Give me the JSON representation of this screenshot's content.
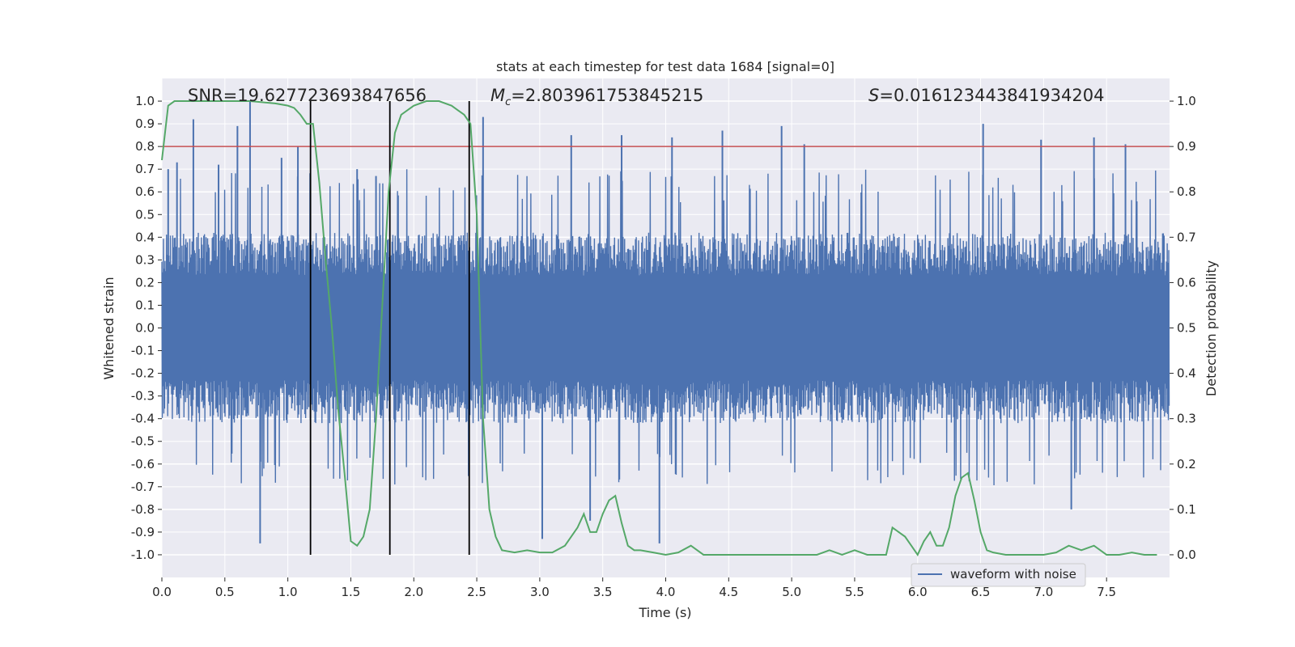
{
  "chart_data": {
    "type": "line",
    "title": "stats at each timestep for test data 1684 [signal=0]",
    "xlabel": "Time (s)",
    "ylabel": "Whitened strain",
    "y2label": "Detection probability",
    "xlim": [
      0.0,
      8.0
    ],
    "ylim": [
      -1.1,
      1.1
    ],
    "y2lim": [
      -0.05,
      1.05
    ],
    "xticks": [
      "0.0",
      "0.5",
      "1.0",
      "1.5",
      "2.0",
      "2.5",
      "3.0",
      "3.5",
      "4.0",
      "4.5",
      "5.0",
      "5.5",
      "6.0",
      "6.5",
      "7.0",
      "7.5"
    ],
    "yticks": [
      "1.0",
      "0.9",
      "0.8",
      "0.7",
      "0.6",
      "0.5",
      "0.4",
      "0.3",
      "0.2",
      "0.1",
      "0.0",
      "-0.1",
      "-0.2",
      "-0.3",
      "-0.4",
      "-0.5",
      "-0.6",
      "-0.7",
      "-0.8",
      "-0.9",
      "-1.0"
    ],
    "y2ticks": [
      "1.0",
      "0.9",
      "0.8",
      "0.7",
      "0.6",
      "0.5",
      "0.4",
      "0.3",
      "0.2",
      "0.1",
      "0.0"
    ],
    "grid": true,
    "legend_position": "lower-right",
    "annotations": {
      "snr": "SNR=19.627723693847656",
      "mc_symbol": "M",
      "mc_sub": "c",
      "mc_value": "=2.803961753845215",
      "s_symbol": "S",
      "s_value": "=0.016123443841934204"
    },
    "threshold_line": {
      "y2": 0.9,
      "color": "#c44e52"
    },
    "vertical_lines": [
      1.18,
      1.81,
      2.44
    ],
    "series": [
      {
        "name": "waveform with noise",
        "color": "#4c72b0",
        "kind": "noise",
        "envelope_typical": 0.42,
        "spikes": [
          [
            0.05,
            0.7
          ],
          [
            0.12,
            0.73
          ],
          [
            0.25,
            0.92
          ],
          [
            0.45,
            0.72
          ],
          [
            0.6,
            0.89
          ],
          [
            0.7,
            1.0
          ],
          [
            0.78,
            -0.95
          ],
          [
            0.95,
            0.75
          ],
          [
            1.08,
            0.8
          ],
          [
            1.55,
            0.7
          ],
          [
            1.7,
            0.67
          ],
          [
            2.55,
            0.93
          ],
          [
            3.02,
            -0.93
          ],
          [
            3.25,
            0.85
          ],
          [
            3.4,
            -0.85
          ],
          [
            3.65,
            0.85
          ],
          [
            3.95,
            -0.95
          ],
          [
            4.05,
            0.84
          ],
          [
            4.45,
            0.87
          ],
          [
            4.92,
            0.89
          ],
          [
            5.1,
            0.81
          ],
          [
            6.52,
            0.9
          ],
          [
            6.98,
            0.83
          ],
          [
            7.22,
            -0.8
          ],
          [
            7.4,
            0.84
          ],
          [
            7.65,
            0.81
          ]
        ]
      },
      {
        "name": "",
        "color": "#55a868",
        "axis": "right",
        "x": [
          0.0,
          0.05,
          0.1,
          0.2,
          0.3,
          0.5,
          0.7,
          0.9,
          1.0,
          1.05,
          1.1,
          1.15,
          1.2,
          1.25,
          1.3,
          1.35,
          1.4,
          1.45,
          1.5,
          1.55,
          1.6,
          1.65,
          1.7,
          1.75,
          1.8,
          1.85,
          1.9,
          2.0,
          2.1,
          2.2,
          2.3,
          2.35,
          2.4,
          2.45,
          2.5,
          2.55,
          2.6,
          2.65,
          2.7,
          2.8,
          2.9,
          3.0,
          3.1,
          3.2,
          3.3,
          3.35,
          3.4,
          3.45,
          3.5,
          3.55,
          3.6,
          3.65,
          3.7,
          3.75,
          3.8,
          3.9,
          4.0,
          4.1,
          4.2,
          4.3,
          4.4,
          4.5,
          4.6,
          4.8,
          5.0,
          5.1,
          5.2,
          5.3,
          5.4,
          5.5,
          5.6,
          5.7,
          5.75,
          5.8,
          5.85,
          5.9,
          5.95,
          6.0,
          6.05,
          6.1,
          6.15,
          6.2,
          6.25,
          6.3,
          6.35,
          6.4,
          6.45,
          6.5,
          6.55,
          6.6,
          6.7,
          6.8,
          6.9,
          7.0,
          7.1,
          7.2,
          7.3,
          7.4,
          7.5,
          7.6,
          7.7,
          7.8,
          7.9
        ],
        "values": [
          0.87,
          0.99,
          1.0,
          1.0,
          1.0,
          1.0,
          1.0,
          0.995,
          0.99,
          0.985,
          0.97,
          0.95,
          0.95,
          0.82,
          0.65,
          0.5,
          0.32,
          0.18,
          0.03,
          0.02,
          0.04,
          0.1,
          0.3,
          0.55,
          0.8,
          0.93,
          0.97,
          0.99,
          1.0,
          1.0,
          0.99,
          0.98,
          0.97,
          0.95,
          0.75,
          0.3,
          0.1,
          0.04,
          0.01,
          0.005,
          0.01,
          0.005,
          0.005,
          0.02,
          0.06,
          0.09,
          0.05,
          0.05,
          0.09,
          0.12,
          0.13,
          0.07,
          0.02,
          0.01,
          0.01,
          0.005,
          0.0,
          0.005,
          0.02,
          0.0,
          0.0,
          0.0,
          0.0,
          0.0,
          0.0,
          0.0,
          0.0,
          0.01,
          0.0,
          0.01,
          0.0,
          0.0,
          0.0,
          0.06,
          0.05,
          0.04,
          0.02,
          0.0,
          0.03,
          0.05,
          0.02,
          0.02,
          0.06,
          0.13,
          0.17,
          0.18,
          0.12,
          0.05,
          0.01,
          0.005,
          0.0,
          0.0,
          0.0,
          0.0,
          0.005,
          0.02,
          0.01,
          0.02,
          0.0,
          0.0,
          0.005,
          0.0,
          0.0
        ]
      }
    ]
  }
}
